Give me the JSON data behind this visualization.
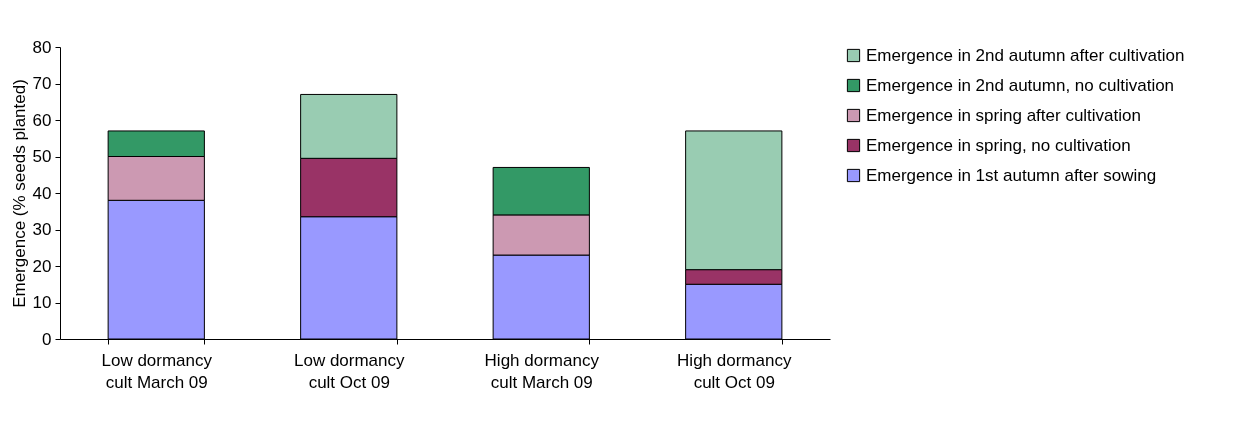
{
  "chart_data": {
    "type": "bar",
    "stacked": true,
    "ylabel": "Emergence (% seeds planted)",
    "categories": [
      "Low dormancy cult March 09",
      "Low dormancy cult Oct 09",
      "High dormancy cult March 09",
      "High dormancy cult Oct 09"
    ],
    "series": [
      {
        "name": "Emergence in 1st autumn after sowing",
        "color": "#9999ff",
        "values": [
          38,
          33.5,
          23,
          15
        ]
      },
      {
        "name": "Emergence in spring, no cultivation",
        "color": "#993366",
        "values": [
          null,
          16,
          null,
          4
        ]
      },
      {
        "name": "Emergence in spring after cultivation",
        "color": "#cc99b2",
        "values": [
          12,
          null,
          11,
          null
        ]
      },
      {
        "name": "Emergence in 2nd autumn, no cultivation",
        "color": "#339966",
        "values": [
          7,
          null,
          13,
          null
        ]
      },
      {
        "name": "Emergence in 2nd autumn after cultivation",
        "color": "#99ccb2",
        "values": [
          null,
          17.5,
          null,
          38
        ]
      }
    ],
    "ylim": [
      0,
      80
    ],
    "yticks": [
      0,
      10,
      20,
      30,
      40,
      50,
      60,
      70,
      80
    ],
    "legend": "right",
    "grid": false
  }
}
